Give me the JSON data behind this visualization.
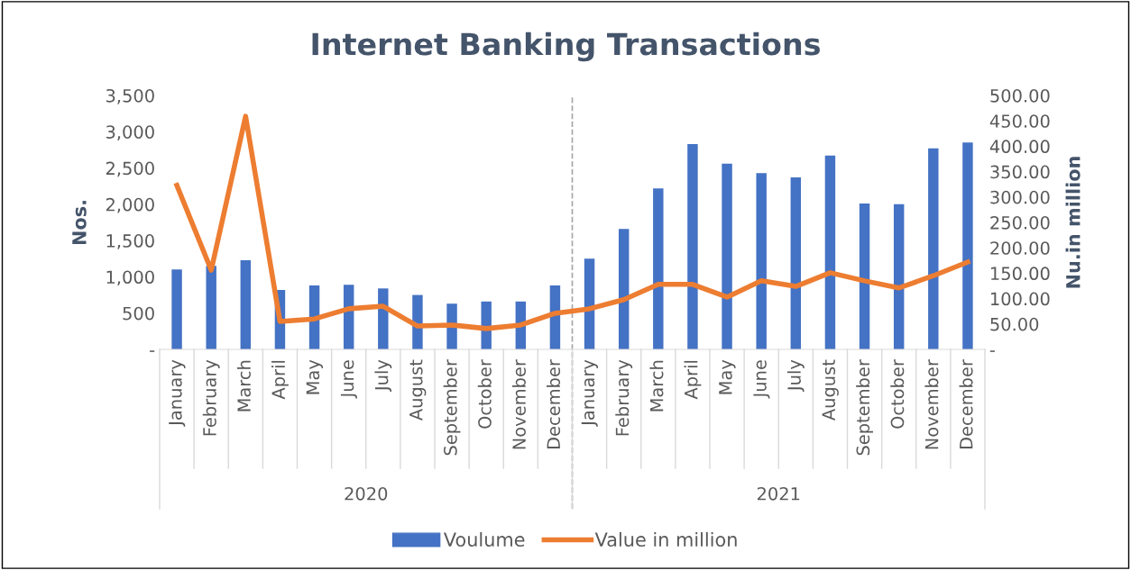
{
  "chart_data": {
    "type": "bar",
    "title": "Internet Banking Transactions",
    "ylabel": "Nos.",
    "y2label": "Nu.in million",
    "categories": [
      "January",
      "February",
      "March",
      "April",
      "May",
      "June",
      "July",
      "August",
      "September",
      "October",
      "November",
      "December",
      "January",
      "February",
      "March",
      "April",
      "May",
      "June",
      "July",
      "August",
      "September",
      "October",
      "November",
      "December"
    ],
    "series": [
      {
        "name": "Voulume",
        "color": "#4472c4",
        "values": [
          1100,
          1150,
          1230,
          820,
          880,
          890,
          840,
          750,
          630,
          660,
          660,
          880,
          1250,
          1660,
          2220,
          2830,
          2560,
          2430,
          2370,
          2670,
          2010,
          2000,
          2770,
          2850
        ]
      },
      {
        "name": "Value in million",
        "type": "line",
        "axis": "y2",
        "color": "#ed7d31",
        "marker": "none",
        "line_style": "solid",
        "values": [
          323,
          156,
          459,
          55,
          60,
          80,
          85,
          46,
          48,
          41,
          48,
          71,
          80,
          98,
          128,
          128,
          103,
          135,
          124,
          151,
          135,
          121,
          145,
          172
        ]
      }
    ],
    "ylim": [
      0,
      3500
    ],
    "yticks": [
      {
        "value": 0,
        "label": "-"
      },
      {
        "value": 500,
        "label": "500"
      },
      {
        "value": 1000,
        "label": "1,000"
      },
      {
        "value": 1500,
        "label": "1,500"
      },
      {
        "value": 2000,
        "label": "2,000"
      },
      {
        "value": 2500,
        "label": "2,500"
      },
      {
        "value": 3000,
        "label": "3,000"
      },
      {
        "value": 3500,
        "label": "3,500"
      }
    ],
    "y2lim": [
      0,
      500
    ],
    "y2ticks": [
      {
        "value": 0,
        "label": "-"
      },
      {
        "value": 50,
        "label": "50.00"
      },
      {
        "value": 100,
        "label": "100.00"
      },
      {
        "value": 150,
        "label": "150.00"
      },
      {
        "value": 200,
        "label": "200.00"
      },
      {
        "value": 250,
        "label": "250.00"
      },
      {
        "value": 300,
        "label": "300.00"
      },
      {
        "value": 350,
        "label": "350.00"
      },
      {
        "value": 400,
        "label": "400.00"
      },
      {
        "value": 450,
        "label": "450.00"
      },
      {
        "value": 500,
        "label": "500.00"
      }
    ],
    "annotations": [
      "2020",
      "2021"
    ],
    "legend": "bottom",
    "grid": false
  }
}
